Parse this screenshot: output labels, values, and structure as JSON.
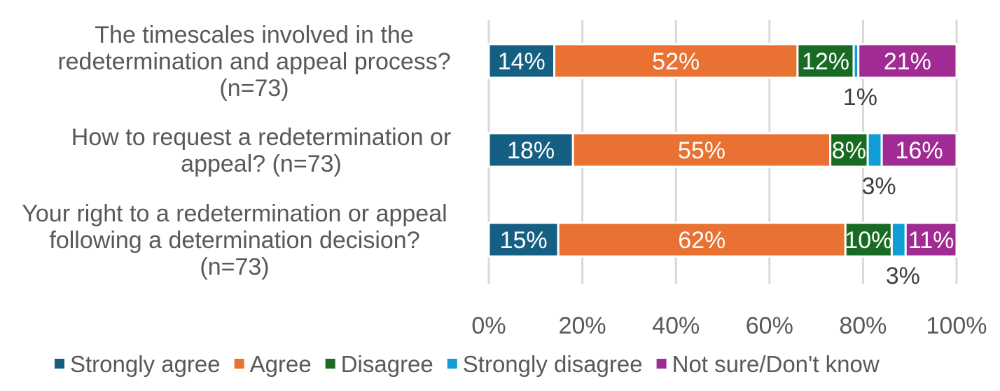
{
  "chart_data": {
    "type": "bar",
    "orientation": "horizontal",
    "stacked": "100%",
    "categories": [
      "The timescales involved in the redetermination and appeal process? (n=73)",
      "How to request a redetermination or appeal? (n=73)",
      "Your right to a redetermination or appeal following a determination decision? (n=73)"
    ],
    "category_lines": [
      [
        "The timescales involved in the",
        "redetermination and appeal process?",
        "(n=73)"
      ],
      [
        "How to request a redetermination or",
        "appeal? (n=73)"
      ],
      [
        "Your right to a redetermination or appeal",
        "following a determination decision?",
        "(n=73)"
      ]
    ],
    "series": [
      {
        "name": "Strongly agree",
        "color": "#156082",
        "values": [
          14,
          18,
          15
        ]
      },
      {
        "name": "Agree",
        "color": "#E97132",
        "values": [
          52,
          55,
          62
        ]
      },
      {
        "name": "Disagree",
        "color": "#196B24",
        "values": [
          12,
          8,
          10
        ]
      },
      {
        "name": "Strongly disagree",
        "color": "#0F9ED5",
        "values": [
          1,
          3,
          3
        ]
      },
      {
        "name": "Not sure/Don't know",
        "color": "#A02B93",
        "values": [
          21,
          16,
          11
        ]
      }
    ],
    "xlim": [
      0,
      100
    ],
    "xticks": [
      "0%",
      "20%",
      "40%",
      "60%",
      "80%",
      "100%"
    ],
    "grid": true,
    "legend": "bottom",
    "title": "",
    "xlabel": "",
    "ylabel": ""
  }
}
